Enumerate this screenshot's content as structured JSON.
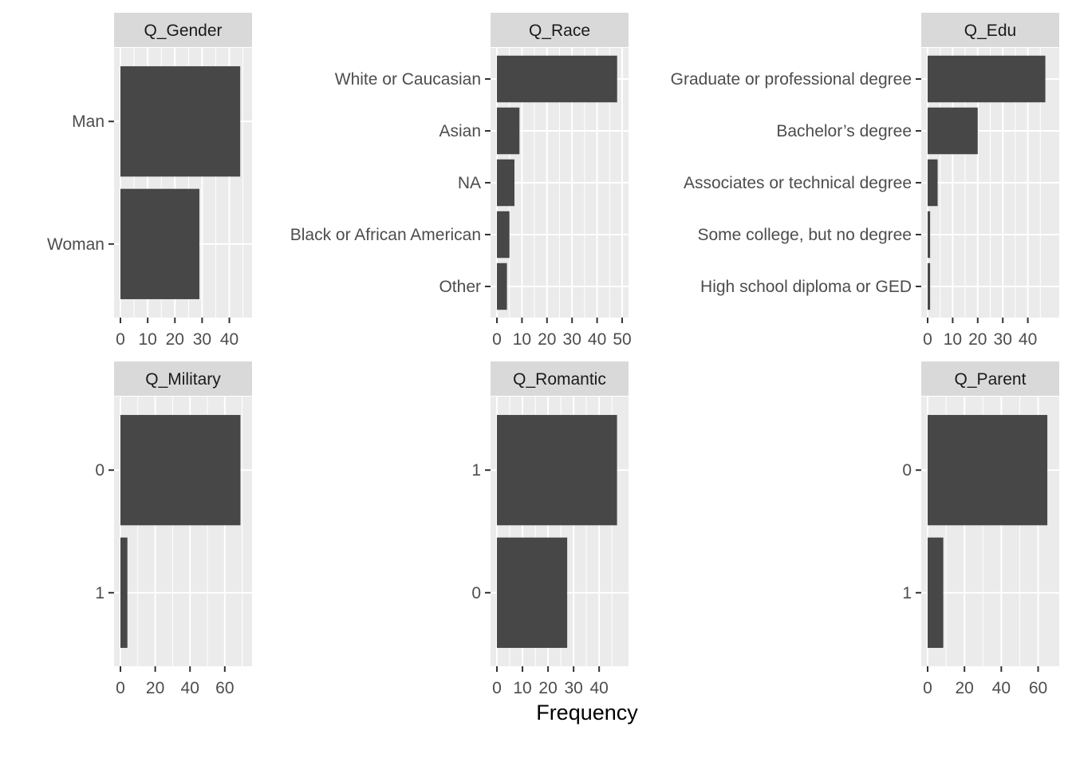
{
  "chart_data": [
    {
      "type": "bar",
      "facet": "Q_Gender",
      "categories": [
        "Man",
        "Woman"
      ],
      "values": [
        44,
        29
      ],
      "xlim": [
        0,
        46
      ],
      "xticks": [
        0,
        10,
        20,
        30,
        40
      ]
    },
    {
      "type": "bar",
      "facet": "Q_Race",
      "categories": [
        "White or Caucasian",
        "Asian",
        "NA",
        "Black or African American",
        "Other"
      ],
      "values": [
        48,
        9,
        7,
        5,
        4
      ],
      "xlim": [
        0,
        50
      ],
      "xticks": [
        0,
        10,
        20,
        30,
        40,
        50
      ]
    },
    {
      "type": "bar",
      "facet": "Q_Edu",
      "categories": [
        "Graduate or professional degree",
        "Bachelor’s degree",
        "Associates or technical degree",
        "Some college, but no degree",
        "High school diploma or GED"
      ],
      "values": [
        47,
        20,
        4,
        1,
        1
      ],
      "xlim": [
        0,
        50
      ],
      "xticks": [
        0,
        10,
        20,
        30,
        40
      ]
    },
    {
      "type": "bar",
      "facet": "Q_Military",
      "categories": [
        "0",
        "1"
      ],
      "values": [
        69,
        4
      ],
      "xlim": [
        0,
        72
      ],
      "xticks": [
        0,
        20,
        40,
        60
      ]
    },
    {
      "type": "bar",
      "facet": "Q_Romantic",
      "categories": [
        "1",
        "0"
      ],
      "values": [
        47,
        27.5
      ],
      "xlim": [
        0,
        49
      ],
      "xticks": [
        0,
        10,
        20,
        30,
        40
      ]
    },
    {
      "type": "bar",
      "facet": "Q_Parent",
      "categories": [
        "0",
        "1"
      ],
      "values": [
        65,
        8.5
      ],
      "xlim": [
        0,
        68
      ],
      "xticks": [
        0,
        20,
        40,
        60
      ]
    }
  ],
  "axis": {
    "xlabel": "Frequency"
  },
  "colors": {
    "bar": "#474747",
    "panel": "#ebebeb",
    "strip": "#d9d9d9",
    "grid": "#ffffff"
  }
}
